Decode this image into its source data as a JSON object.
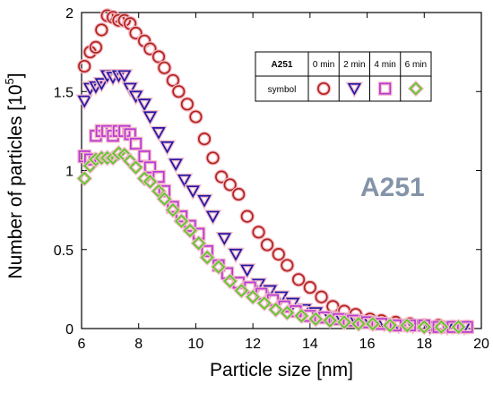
{
  "chart_data": {
    "type": "scatter",
    "xlabel": "Particle size [nm]",
    "ylabel": "Number of particles [10",
    "ylabel_exp": "5",
    "ylabel_close": "]",
    "xlim": [
      6,
      20
    ],
    "ylim": [
      0,
      2
    ],
    "xticks": [
      "6",
      "8",
      "10",
      "12",
      "14",
      "16",
      "18",
      "20"
    ],
    "yticks": [
      "0",
      "0.5",
      "1",
      "1.5",
      "2"
    ],
    "annotation": "A251",
    "annotation_color": "#8494a8",
    "grid": false,
    "legend": {
      "position": "top-right",
      "header": "A251",
      "row_label": "symbol",
      "columns": [
        "0 min",
        "2 min",
        "4 min",
        "6 min"
      ]
    },
    "series": [
      {
        "name": "0 min",
        "marker": "circle",
        "color": "#b02418",
        "halo": "#f4b8c8",
        "x": [
          6.1,
          6.3,
          6.5,
          6.7,
          6.9,
          7.1,
          7.3,
          7.5,
          7.7,
          7.9,
          8.2,
          8.4,
          8.7,
          8.9,
          9.2,
          9.4,
          9.7,
          10.0,
          10.3,
          10.6,
          10.9,
          11.2,
          11.5,
          11.8,
          12.2,
          12.5,
          12.9,
          13.2,
          13.6,
          14.0,
          14.4,
          14.8,
          15.2,
          15.6,
          16.1,
          16.5,
          17.0,
          17.5,
          18.0,
          18.5,
          19.0,
          19.5
        ],
        "y": [
          1.66,
          1.75,
          1.78,
          1.89,
          1.98,
          1.97,
          1.95,
          1.95,
          1.93,
          1.87,
          1.82,
          1.77,
          1.72,
          1.65,
          1.57,
          1.5,
          1.42,
          1.34,
          1.2,
          1.08,
          0.96,
          0.91,
          0.85,
          0.71,
          0.61,
          0.53,
          0.47,
          0.4,
          0.31,
          0.26,
          0.2,
          0.14,
          0.11,
          0.09,
          0.06,
          0.05,
          0.04,
          0.03,
          0.02,
          0.02,
          0.01,
          0.01
        ]
      },
      {
        "name": "2 min",
        "marker": "triangle-down",
        "color": "#1c1aa8",
        "halo": "#f4b8c8",
        "x": [
          6.1,
          6.3,
          6.5,
          6.7,
          6.9,
          7.1,
          7.3,
          7.5,
          7.7,
          7.9,
          8.2,
          8.4,
          8.7,
          9.0,
          9.3,
          9.6,
          9.9,
          10.3,
          10.6,
          11.0,
          11.4,
          11.8,
          12.2,
          12.6,
          13.0,
          13.4,
          13.8,
          14.2,
          14.7,
          15.1,
          15.6,
          16.1,
          16.6,
          17.1,
          17.6,
          18.2,
          18.8,
          19.4
        ],
        "y": [
          1.44,
          1.52,
          1.53,
          1.55,
          1.6,
          1.59,
          1.6,
          1.6,
          1.52,
          1.47,
          1.42,
          1.34,
          1.24,
          1.15,
          1.04,
          0.94,
          0.87,
          0.81,
          0.71,
          0.57,
          0.47,
          0.37,
          0.28,
          0.24,
          0.2,
          0.16,
          0.12,
          0.1,
          0.07,
          0.06,
          0.05,
          0.04,
          0.03,
          0.02,
          0.02,
          0.01,
          0.01,
          0.01
        ]
      },
      {
        "name": "4 min",
        "marker": "square",
        "color": "#b63ad8",
        "halo": "#f4b8c8",
        "x": [
          6.1,
          6.3,
          6.5,
          6.7,
          6.9,
          7.1,
          7.3,
          7.5,
          7.7,
          7.9,
          8.2,
          8.4,
          8.7,
          8.9,
          9.2,
          9.5,
          9.8,
          10.1,
          10.4,
          10.8,
          11.1,
          11.5,
          11.9,
          12.3,
          12.7,
          13.1,
          13.5,
          14.0,
          14.5,
          15.0,
          15.5,
          16.0,
          16.5,
          17.0,
          17.5,
          18.0,
          18.5,
          19.0,
          19.5
        ],
        "y": [
          1.09,
          1.07,
          1.22,
          1.25,
          1.25,
          1.22,
          1.25,
          1.25,
          1.23,
          1.17,
          1.09,
          1.02,
          0.96,
          0.87,
          0.77,
          0.71,
          0.65,
          0.6,
          0.49,
          0.4,
          0.35,
          0.29,
          0.26,
          0.22,
          0.18,
          0.14,
          0.11,
          0.08,
          0.07,
          0.06,
          0.05,
          0.04,
          0.03,
          0.02,
          0.02,
          0.02,
          0.01,
          0.01,
          0.01
        ]
      },
      {
        "name": "6 min",
        "marker": "diamond",
        "color": "#55cc22",
        "halo": "#f4b8c8",
        "x": [
          6.1,
          6.3,
          6.5,
          6.7,
          6.9,
          7.1,
          7.3,
          7.5,
          7.7,
          7.9,
          8.2,
          8.4,
          8.7,
          8.9,
          9.2,
          9.5,
          9.8,
          10.1,
          10.4,
          10.8,
          11.2,
          11.6,
          12.0,
          12.4,
          12.8,
          13.2,
          13.7,
          14.2,
          14.7,
          15.2,
          15.7,
          16.2,
          16.8,
          17.4,
          18.0,
          18.6,
          19.2
        ],
        "y": [
          0.95,
          1.03,
          1.07,
          1.08,
          1.08,
          1.08,
          1.11,
          1.1,
          1.06,
          1.02,
          0.95,
          0.93,
          0.87,
          0.82,
          0.75,
          0.68,
          0.62,
          0.54,
          0.45,
          0.39,
          0.3,
          0.24,
          0.2,
          0.16,
          0.12,
          0.1,
          0.08,
          0.06,
          0.05,
          0.04,
          0.03,
          0.03,
          0.02,
          0.02,
          0.01,
          0.01,
          0.01
        ]
      }
    ]
  }
}
